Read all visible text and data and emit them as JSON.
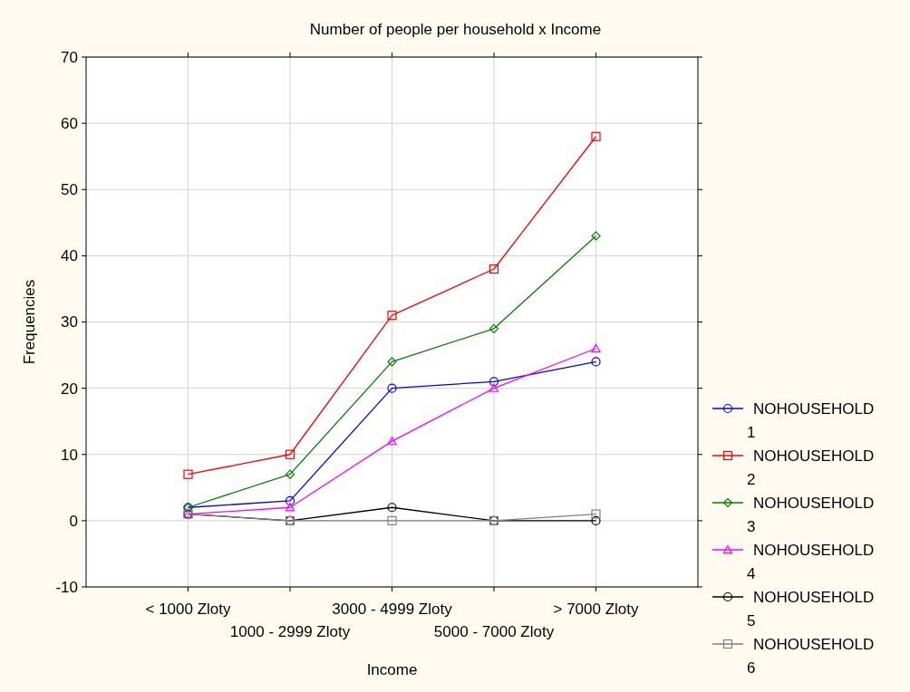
{
  "chart_data": {
    "type": "line",
    "title": "Number of people per household  x Income",
    "xlabel": "Income",
    "ylabel": "Frequencies",
    "categories": [
      "< 1000 Zloty",
      "1000 - 2999 Zloty",
      "3000 - 4999 Zloty",
      "5000 - 7000 Zloty",
      "> 7000 Zloty"
    ],
    "series": [
      {
        "name": "NOHOUSEHOLD 1",
        "color": "#0000ff",
        "marker": "circle",
        "values": [
          2,
          3,
          20,
          21,
          24
        ]
      },
      {
        "name": "NOHOUSEHOLD 2",
        "color": "#ff0000",
        "marker": "square",
        "values": [
          7,
          10,
          31,
          38,
          58
        ]
      },
      {
        "name": "NOHOUSEHOLD 3",
        "color": "#008000",
        "marker": "diamond",
        "values": [
          2,
          7,
          24,
          29,
          43
        ]
      },
      {
        "name": "NOHOUSEHOLD 4",
        "color": "#ff00ff",
        "marker": "triangle",
        "values": [
          1,
          2,
          12,
          20,
          26
        ]
      },
      {
        "name": "NOHOUSEHOLD 5",
        "color": "#000000",
        "marker": "circle",
        "values": [
          1,
          0,
          2,
          0,
          0
        ]
      },
      {
        "name": "NOHOUSEHOLD 6",
        "color": "#808080",
        "marker": "square",
        "values": [
          1,
          0,
          0,
          0,
          1
        ]
      }
    ],
    "ylim": [
      -10,
      70
    ],
    "yticks": [
      -10,
      0,
      10,
      20,
      30,
      40,
      50,
      60,
      70
    ],
    "grid": true,
    "legend": "right",
    "line_style": "solid"
  }
}
